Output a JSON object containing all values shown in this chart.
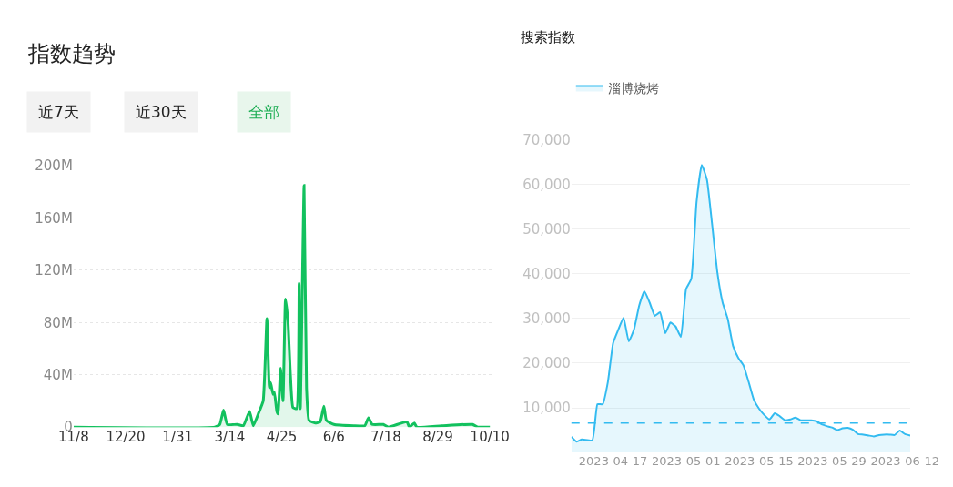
{
  "chart_data": [
    {
      "type": "area",
      "title": "指数趋势",
      "annotations": [
        "近7天",
        "近30天",
        "全部"
      ],
      "x": [
        "2022-11-08",
        "2023-03-02",
        "2023-03-06",
        "2023-03-09",
        "2023-03-12",
        "2023-03-20",
        "2023-03-25",
        "2023-03-30",
        "2023-04-02",
        "2023-04-06",
        "2023-04-10",
        "2023-04-13",
        "2023-04-15",
        "2023-04-16",
        "2023-04-18",
        "2023-04-19",
        "2023-04-21",
        "2023-04-22",
        "2023-04-24",
        "2023-04-26",
        "2023-04-28",
        "2023-04-30",
        "2023-05-02",
        "2023-05-04",
        "2023-05-07",
        "2023-05-09",
        "2023-05-10",
        "2023-05-13",
        "2023-05-15",
        "2023-05-17",
        "2023-05-22",
        "2023-05-26",
        "2023-05-29",
        "2023-05-31",
        "2023-06-06",
        "2023-06-22",
        "2023-07-01",
        "2023-07-04",
        "2023-07-07",
        "2023-07-16",
        "2023-07-20",
        "2023-08-04",
        "2023-08-06",
        "2023-08-10",
        "2023-08-12",
        "2023-09-01",
        "2023-09-26",
        "2023-09-30",
        "2023-10-10"
      ],
      "series": [
        {
          "color": "#12c15e",
          "values": [
            0,
            0,
            2,
            13,
            2,
            2,
            1,
            12,
            1,
            10,
            20,
            83,
            30,
            34,
            25,
            27,
            12,
            10,
            45,
            20,
            98,
            81,
            40,
            15,
            14,
            110,
            14,
            185,
            30,
            5,
            3,
            4,
            16,
            5,
            2,
            1,
            1,
            7,
            2,
            2,
            0,
            4,
            0,
            3,
            0,
            1,
            2,
            0,
            0
          ]
        }
      ],
      "xlim": [
        "2022-11-08",
        "2023-10-12"
      ],
      "xticks": [
        {
          "value": "2022-11-08",
          "label": "11/8"
        },
        {
          "value": "2022-12-20",
          "label": "12/20"
        },
        {
          "value": "2023-01-31",
          "label": "1/31"
        },
        {
          "value": "2023-03-14",
          "label": "3/14"
        },
        {
          "value": "2023-04-25",
          "label": "4/25"
        },
        {
          "value": "2023-06-06",
          "label": "6/6"
        },
        {
          "value": "2023-07-18",
          "label": "7/18"
        },
        {
          "value": "2023-08-29",
          "label": "8/29"
        },
        {
          "value": "2023-10-10",
          "label": "10/10"
        }
      ],
      "ylim": [
        0,
        200
      ],
      "yticks": [
        0,
        {
          "value": 40,
          "label": "40M"
        },
        {
          "value": 80,
          "label": "80M"
        },
        {
          "value": 120,
          "label": "120M"
        },
        {
          "value": 160,
          "label": "160M"
        },
        {
          "value": 200,
          "label": "200M"
        }
      ],
      "grid": "y"
    },
    {
      "type": "area",
      "title": "搜索指数",
      "legend": "top left",
      "x": [
        "2023-04-09",
        "2023-04-10",
        "2023-04-11",
        "2023-04-13",
        "2023-04-14",
        "2023-04-15",
        "2023-04-16",
        "2023-04-17",
        "2023-04-18",
        "2023-04-19",
        "2023-04-20",
        "2023-04-21",
        "2023-04-22",
        "2023-04-23",
        "2023-04-24",
        "2023-04-25",
        "2023-04-26",
        "2023-04-27",
        "2023-04-28",
        "2023-04-29",
        "2023-04-30",
        "2023-05-01",
        "2023-05-02",
        "2023-05-03",
        "2023-05-04",
        "2023-05-05",
        "2023-05-06",
        "2023-05-07",
        "2023-05-08",
        "2023-05-09",
        "2023-05-10",
        "2023-05-11",
        "2023-05-12",
        "2023-05-13",
        "2023-05-14",
        "2023-05-15",
        "2023-05-16",
        "2023-05-17",
        "2023-05-18",
        "2023-05-19",
        "2023-05-20",
        "2023-05-21",
        "2023-05-22",
        "2023-05-23",
        "2023-05-24",
        "2023-05-25",
        "2023-05-26",
        "2023-05-27",
        "2023-05-28",
        "2023-05-29",
        "2023-05-30",
        "2023-05-31",
        "2023-06-01",
        "2023-06-02",
        "2023-06-03",
        "2023-06-04",
        "2023-06-05",
        "2023-06-06",
        "2023-06-07",
        "2023-06-08",
        "2023-06-09",
        "2023-06-10",
        "2023-06-11",
        "2023-06-12",
        "2023-06-13"
      ],
      "series": [
        {
          "name": "淄博烧烤",
          "color": "#33bbf0",
          "values": [
            3500,
            2400,
            2900,
            2700,
            10800,
            10800,
            15800,
            24500,
            27500,
            30200,
            24900,
            27500,
            32900,
            36100,
            33600,
            30600,
            31400,
            26700,
            29100,
            28200,
            25900,
            36600,
            38900,
            56000,
            64400,
            61100,
            51000,
            40300,
            33600,
            29900,
            23900,
            21200,
            19500,
            15800,
            11800,
            9800,
            8400,
            7400,
            8800,
            8100,
            7200,
            7400,
            7800,
            7200,
            7200,
            7200,
            7000,
            6300,
            5900,
            5600,
            5000,
            5400,
            5500,
            5100,
            4100,
            4000,
            3800,
            3600,
            3900,
            4000,
            4000,
            3900,
            4900,
            4100,
            3800
          ]
        }
      ],
      "xlim": [
        "2023-04-09",
        "2023-06-13"
      ],
      "xticks": [
        "2023-04-17",
        "2023-05-01",
        "2023-05-15",
        "2023-05-29",
        "2023-06-12"
      ],
      "ylim": [
        0,
        70000
      ],
      "yticks": [
        {
          "value": 10000,
          "label": "10,000"
        },
        {
          "value": 20000,
          "label": "20,000"
        },
        {
          "value": 30000,
          "label": "30,000"
        },
        {
          "value": 40000,
          "label": "40,000"
        },
        {
          "value": 50000,
          "label": "50,000"
        },
        {
          "value": 60000,
          "label": "60,000"
        },
        {
          "value": 70000,
          "label": "70,000"
        }
      ],
      "ref_lines": [
        {
          "axis": "y",
          "value": 6600,
          "color": "#33bbf0",
          "line_style": "dashed"
        }
      ],
      "grid": "y"
    }
  ]
}
